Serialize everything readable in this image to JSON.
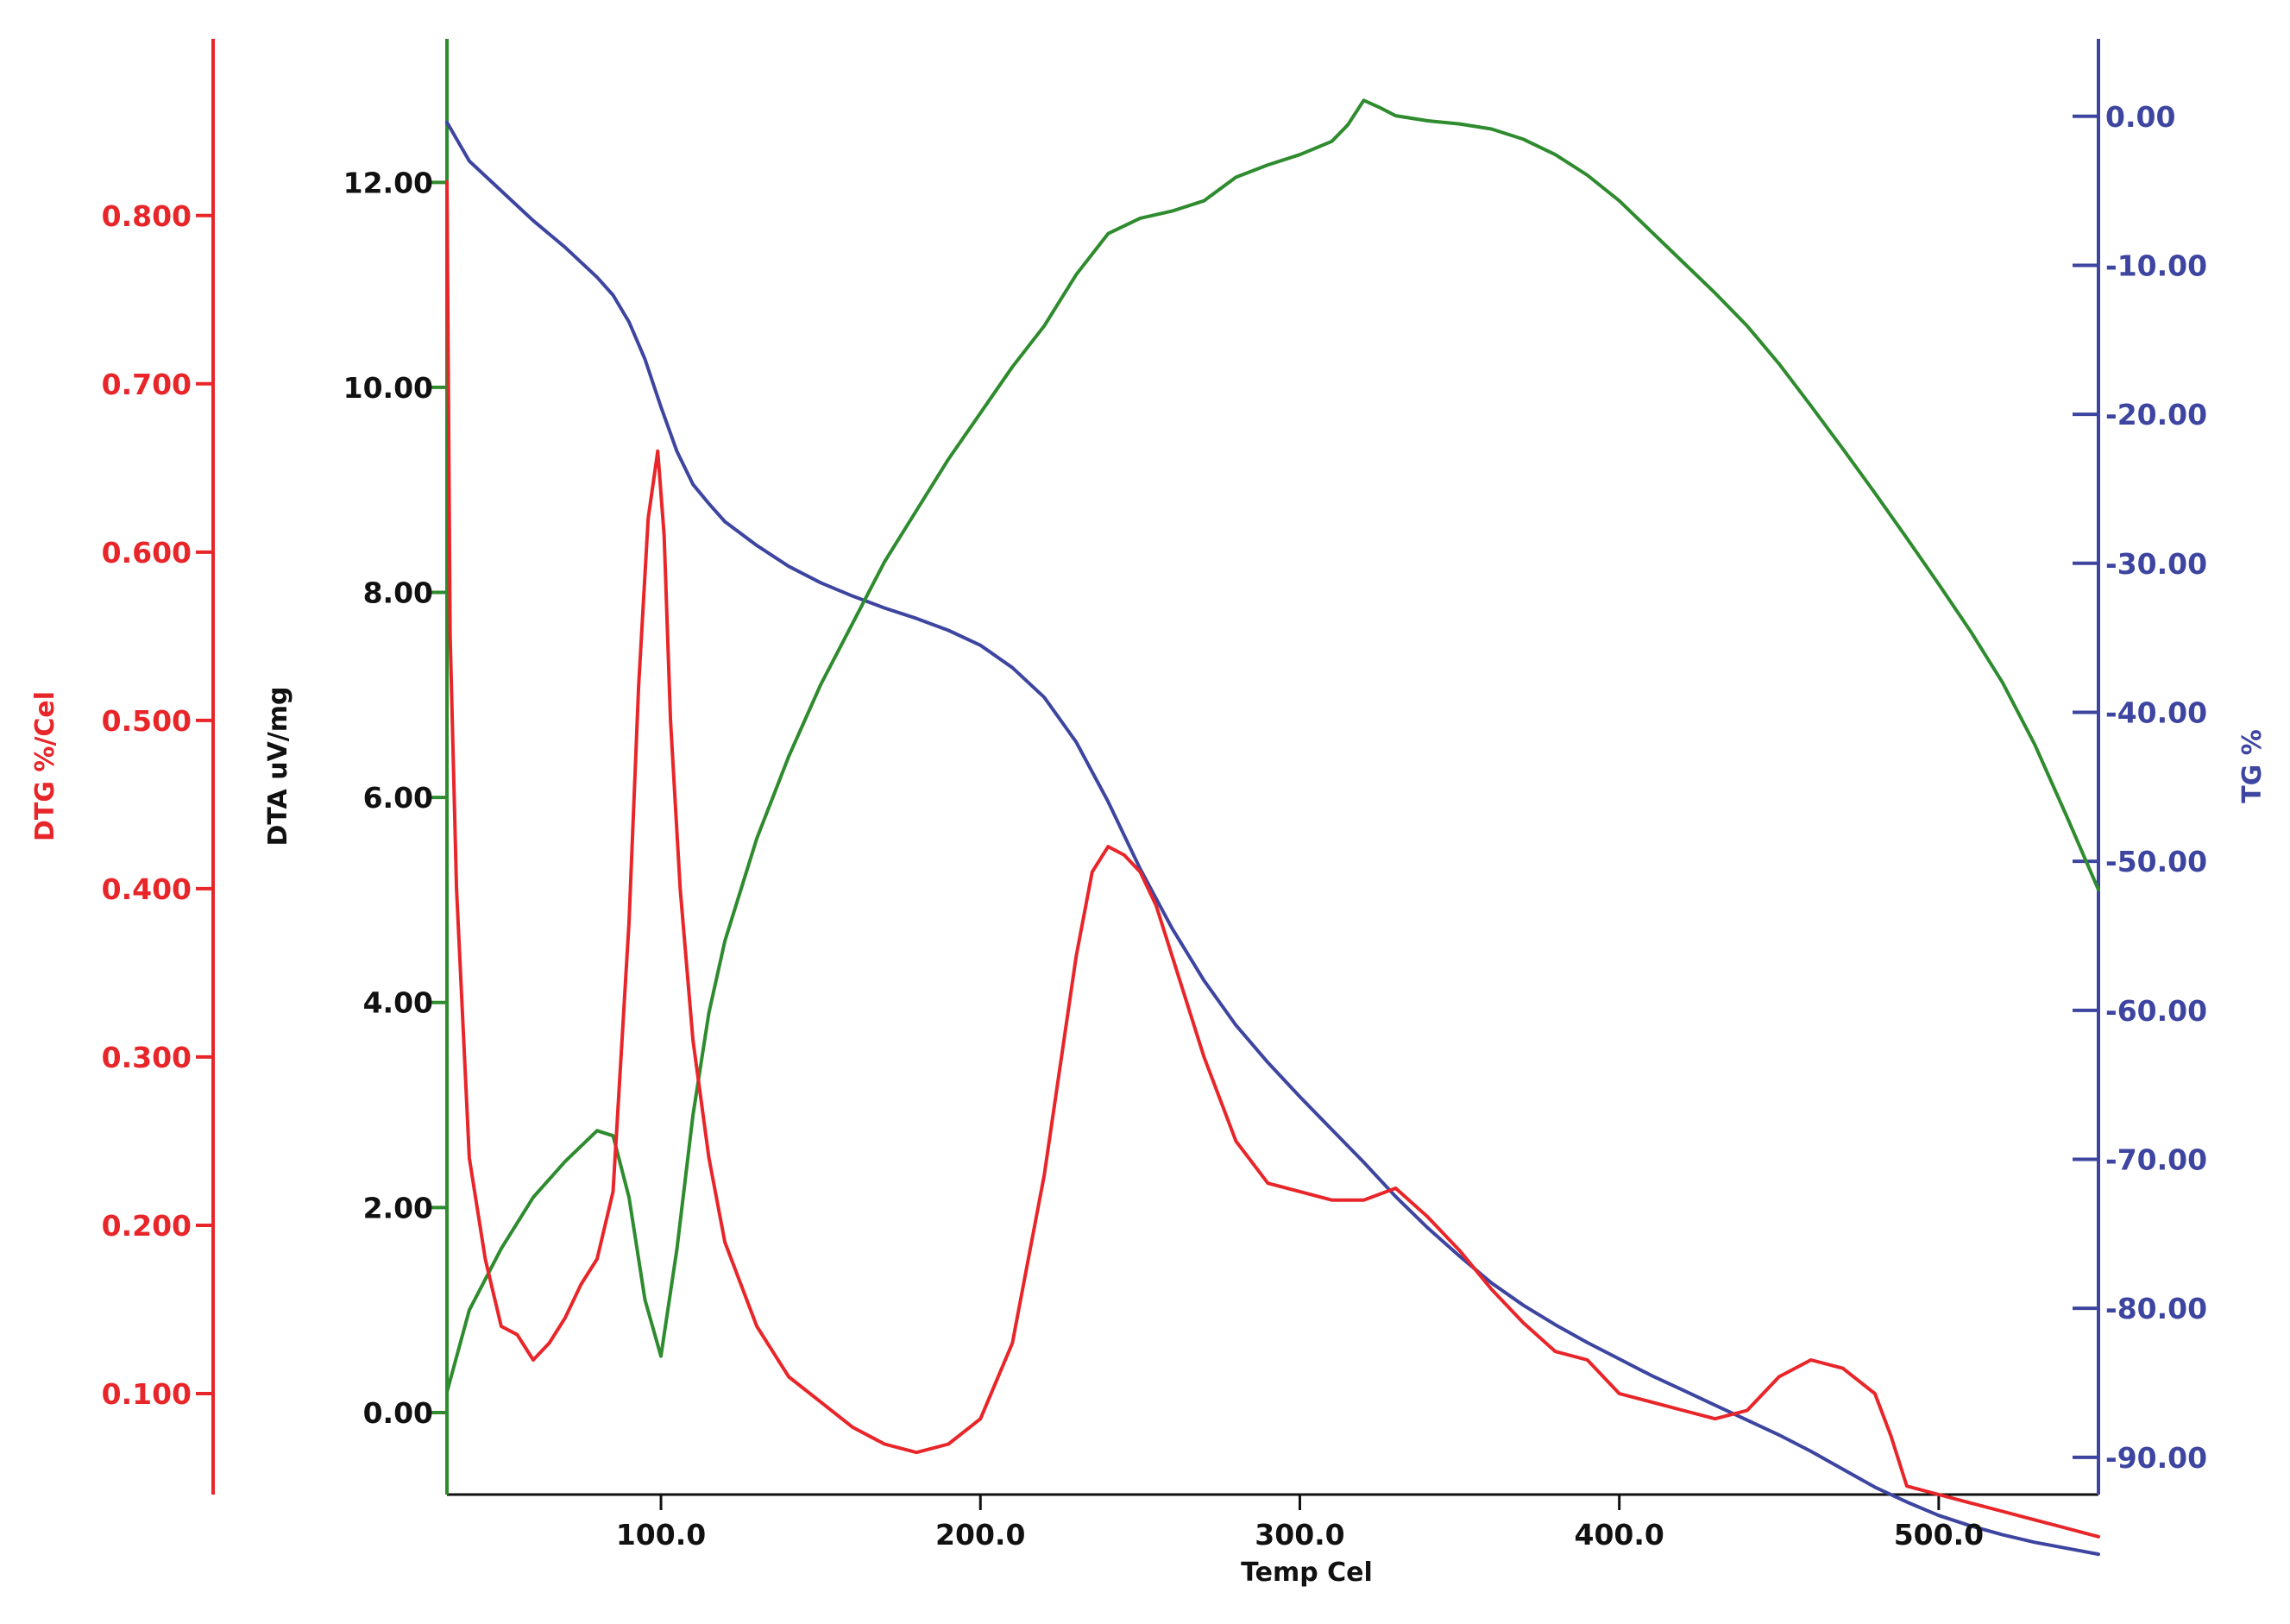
{
  "chart_data": {
    "type": "line",
    "title": "",
    "xlabel": "Temp Cel",
    "xlim": [
      33,
      550
    ],
    "x_ticks": [
      100,
      200,
      300,
      400,
      500
    ],
    "x_tick_labels": [
      "100.0",
      "200.0",
      "300.0",
      "400.0",
      "500.0"
    ],
    "grid": false,
    "legend": "none",
    "axes": {
      "dtg": {
        "label": "DTG %/Cel",
        "color": "#e8262a",
        "side": "left-outer",
        "ylim": [
          0.04,
          0.905
        ],
        "ticks": [
          0.1,
          0.2,
          0.3,
          0.4,
          0.5,
          0.6,
          0.7,
          0.8
        ],
        "tick_labels": [
          "0.100",
          "0.200",
          "0.300",
          "0.400",
          "0.500",
          "0.600",
          "0.700",
          "0.800"
        ]
      },
      "dta": {
        "label": "DTA uV/mg",
        "color": "#2e8b2e",
        "label_color": "#111111",
        "side": "left-inner",
        "ylim": [
          -0.8,
          13.4
        ],
        "ticks": [
          0,
          2,
          4,
          6,
          8,
          10,
          12
        ],
        "tick_labels": [
          "0.00",
          "2.00",
          "4.00",
          "6.00",
          "8.00",
          "10.00",
          "12.00"
        ]
      },
      "tg": {
        "label": "TG %",
        "color": "#3d45a0",
        "side": "right",
        "ylim": [
          -92.5,
          5.2
        ],
        "ticks": [
          0,
          -10,
          -20,
          -30,
          -40,
          -50,
          -60,
          -70,
          -80,
          -90
        ],
        "tick_labels": [
          "0.00",
          "-10.00",
          "-20.00",
          "-30.00",
          "-40.00",
          "-50.00",
          "-60.00",
          "-70.00",
          "-80.00",
          "-90.00"
        ]
      }
    },
    "series": [
      {
        "name": "TG %",
        "axis": "tg",
        "color": "#3d45a0",
        "x": [
          33,
          40,
          50,
          60,
          70,
          80,
          85,
          90,
          95,
          100,
          105,
          110,
          115,
          120,
          130,
          140,
          150,
          160,
          170,
          180,
          190,
          200,
          210,
          220,
          230,
          240,
          250,
          260,
          270,
          280,
          290,
          300,
          310,
          320,
          330,
          340,
          350,
          360,
          370,
          380,
          390,
          400,
          410,
          420,
          430,
          440,
          450,
          460,
          470,
          480,
          490,
          500,
          510,
          520,
          530,
          540,
          550
        ],
        "y": [
          0.4,
          3,
          5,
          7,
          8.8,
          10.8,
          12,
          13.8,
          16.3,
          19.5,
          22.5,
          24.7,
          26,
          27.2,
          28.8,
          30.2,
          31.3,
          32.2,
          33,
          33.7,
          34.5,
          35.5,
          37,
          39,
          42,
          46,
          50.5,
          54.5,
          58,
          61,
          63.5,
          65.8,
          68,
          70.2,
          72.5,
          74.6,
          76.5,
          78.3,
          79.8,
          81.1,
          82.3,
          83.4,
          84.5,
          85.5,
          86.5,
          87.5,
          88.5,
          89.6,
          90.8,
          92,
          93,
          93.9,
          94.6,
          95.2,
          95.7,
          96.1,
          96.5
        ]
      },
      {
        "name": "DTA uV/mg",
        "axis": "dta",
        "color": "#2e8b2e",
        "x": [
          33,
          40,
          50,
          60,
          70,
          80,
          85,
          90,
          95,
          100,
          105,
          110,
          115,
          120,
          130,
          140,
          150,
          160,
          170,
          180,
          190,
          200,
          210,
          220,
          230,
          240,
          250,
          260,
          270,
          280,
          290,
          300,
          310,
          315,
          320,
          325,
          330,
          340,
          350,
          360,
          370,
          380,
          390,
          400,
          410,
          420,
          430,
          440,
          450,
          460,
          470,
          480,
          490,
          500,
          510,
          520,
          530,
          540,
          550
        ],
        "y": [
          0.2,
          1,
          1.6,
          2.1,
          2.45,
          2.75,
          2.7,
          2.1,
          1.1,
          0.55,
          1.6,
          2.9,
          3.9,
          4.6,
          5.6,
          6.4,
          7.1,
          7.7,
          8.3,
          8.8,
          9.3,
          9.75,
          10.2,
          10.6,
          11.1,
          11.5,
          11.65,
          11.72,
          11.82,
          12.05,
          12.17,
          12.27,
          12.4,
          12.56,
          12.8,
          12.73,
          12.65,
          12.6,
          12.57,
          12.52,
          12.42,
          12.27,
          12.07,
          11.82,
          11.52,
          11.22,
          10.92,
          10.6,
          10.23,
          9.82,
          9.4,
          8.97,
          8.53,
          8.08,
          7.62,
          7.12,
          6.52,
          5.82,
          5.1
        ]
      },
      {
        "name": "DTG %/Cel",
        "axis": "dtg",
        "color": "#e8262a",
        "x": [
          33,
          34,
          36,
          40,
          45,
          50,
          55,
          60,
          65,
          70,
          75,
          80,
          85,
          90,
          93,
          96,
          99,
          101,
          103,
          106,
          110,
          115,
          120,
          130,
          140,
          150,
          160,
          170,
          180,
          190,
          200,
          210,
          220,
          230,
          235,
          240,
          245,
          250,
          255,
          260,
          270,
          280,
          290,
          300,
          310,
          320,
          330,
          340,
          350,
          360,
          370,
          380,
          390,
          400,
          410,
          420,
          430,
          440,
          450,
          460,
          470,
          480,
          485,
          490,
          500,
          510,
          520,
          530,
          540,
          550
        ],
        "y": [
          0.82,
          0.55,
          0.4,
          0.24,
          0.18,
          0.14,
          0.135,
          0.12,
          0.13,
          0.145,
          0.165,
          0.18,
          0.22,
          0.38,
          0.52,
          0.62,
          0.66,
          0.61,
          0.5,
          0.4,
          0.31,
          0.24,
          0.19,
          0.14,
          0.11,
          0.095,
          0.08,
          0.07,
          0.065,
          0.07,
          0.085,
          0.13,
          0.23,
          0.36,
          0.41,
          0.425,
          0.42,
          0.41,
          0.39,
          0.36,
          0.3,
          0.25,
          0.225,
          0.22,
          0.215,
          0.215,
          0.222,
          0.205,
          0.185,
          0.162,
          0.142,
          0.125,
          0.12,
          0.1,
          0.095,
          0.09,
          0.085,
          0.09,
          0.11,
          0.12,
          0.115,
          0.1,
          0.075,
          0.045,
          0.04,
          0.035,
          0.03,
          0.025,
          0.02,
          0.015
        ]
      }
    ]
  }
}
